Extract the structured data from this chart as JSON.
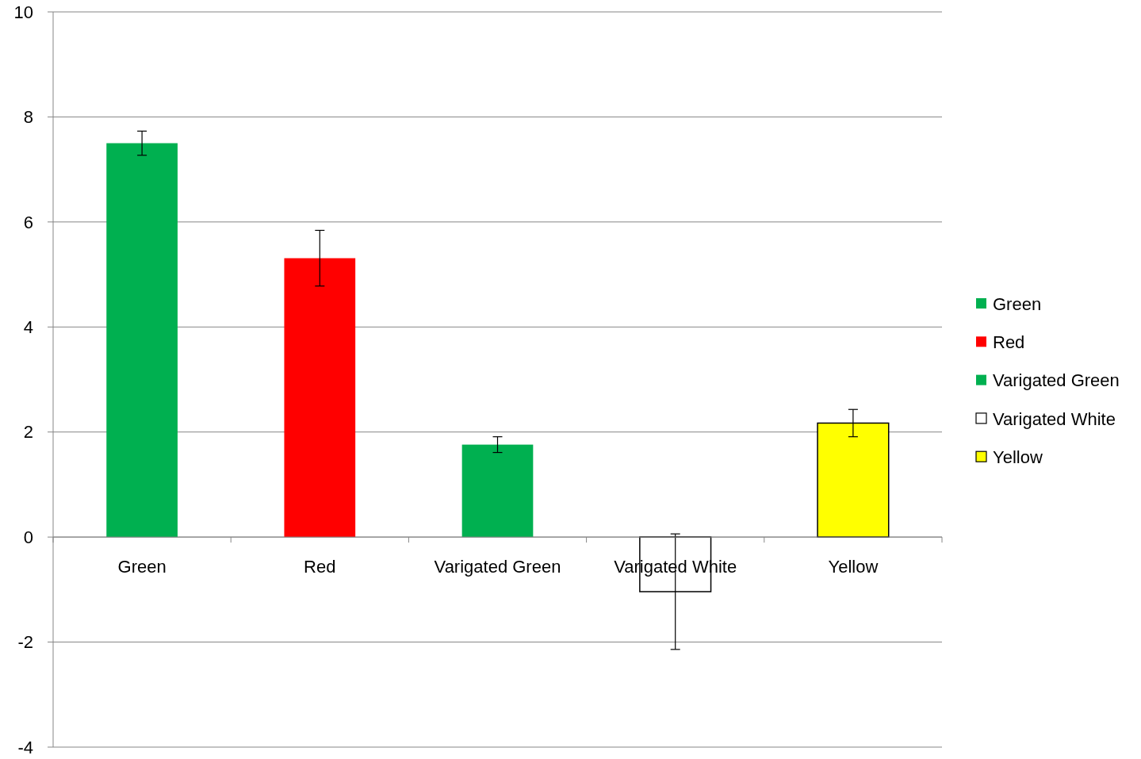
{
  "chart_data": {
    "type": "bar",
    "categories": [
      "Green",
      "Red",
      "Varigated Green",
      "Varigated White",
      "Yellow"
    ],
    "series": [
      {
        "name": "Green",
        "color": "#00b050",
        "values": [
          7.5,
          null,
          null,
          null,
          null
        ],
        "errors": [
          0.23,
          null,
          null,
          null,
          null
        ]
      },
      {
        "name": "Red",
        "color": "#ff0000",
        "values": [
          null,
          5.31,
          null,
          null,
          null
        ],
        "errors": [
          null,
          0.53,
          null,
          null,
          null
        ]
      },
      {
        "name": "Varigated Green",
        "color": "#00b050",
        "values": [
          null,
          null,
          1.76,
          null,
          null
        ],
        "errors": [
          null,
          null,
          0.15,
          null,
          null
        ]
      },
      {
        "name": "Varigated White",
        "color": "#ffffff",
        "values": [
          null,
          null,
          null,
          -1.04,
          null
        ],
        "errors": [
          null,
          null,
          null,
          1.1,
          null
        ]
      },
      {
        "name": "Yellow",
        "color": "#ffff00",
        "values": [
          null,
          null,
          null,
          null,
          2.17
        ],
        "errors": [
          null,
          null,
          null,
          null,
          0.26
        ]
      }
    ],
    "ylim": [
      -4,
      10
    ],
    "yticks": [
      -4,
      -2,
      0,
      2,
      4,
      6,
      8,
      10
    ],
    "grid": "y",
    "legend": "right"
  }
}
